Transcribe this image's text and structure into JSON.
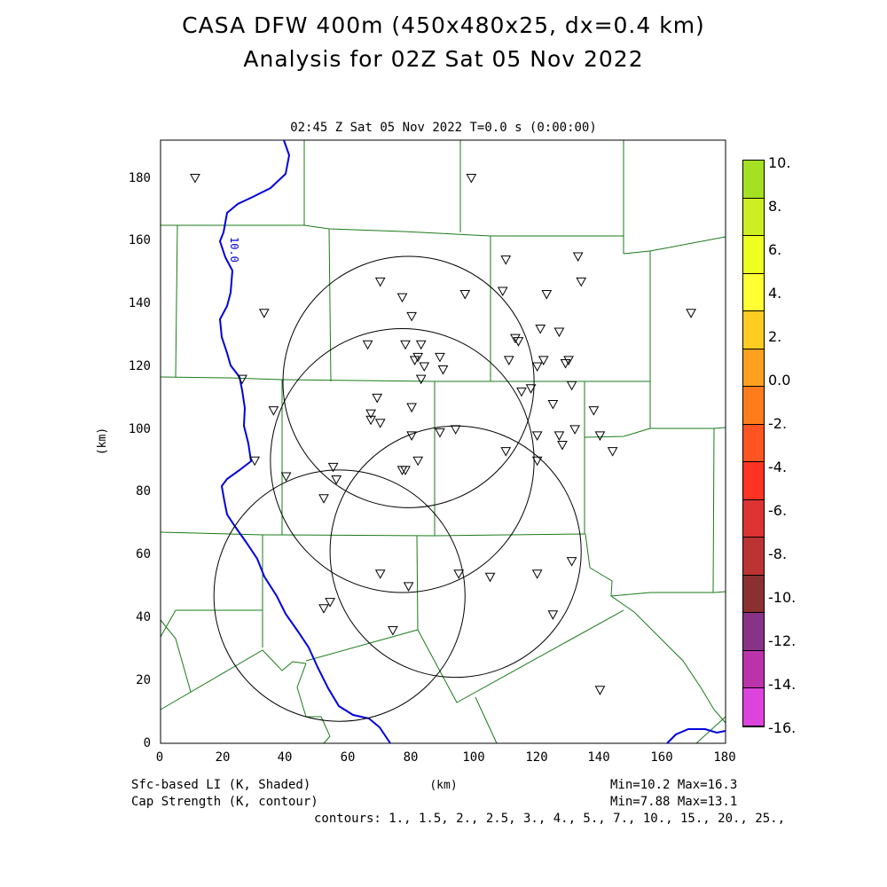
{
  "title_line1": "CASA DFW 400m (450x480x25, dx=0.4 km)",
  "title_line2": "Analysis for 02Z Sat 05 Nov 2022",
  "subtitle": "02:45 Z Sat 05 Nov 2022    T=0.0 s (0:00:00)",
  "y_axis_label": "(km)",
  "x_axis_label": "(km)",
  "y_ticks": [
    "0",
    "20",
    "40",
    "60",
    "80",
    "100",
    "120",
    "140",
    "160",
    "180"
  ],
  "x_ticks": [
    "0",
    "20",
    "40",
    "60",
    "80",
    "100",
    "120",
    "140",
    "160",
    "180"
  ],
  "contour_label": "10.0",
  "footer": {
    "left1": "Sfc-based LI (K, Shaded)",
    "left2": "Cap Strength (K, contour)",
    "right1": "Min=10.2 Max=16.3",
    "right2": "Min=7.88 Max=13.1",
    "contours": "contours: 1., 1.5, 2., 2.5, 3., 4., 5., 7., 10., 15., 20., 25.,"
  },
  "colorbar": {
    "labels": [
      "10.",
      "8.",
      "6.",
      "4.",
      "2.",
      "0.0",
      "-2.",
      "-4.",
      "-6.",
      "-8.",
      "-10.",
      "-12.",
      "-14.",
      "-16."
    ],
    "colors": [
      "#a6e022",
      "#ccee22",
      "#eeff22",
      "#ffff33",
      "#ffcc22",
      "#ffa020",
      "#ff7c1c",
      "#ff5522",
      "#ff3322",
      "#dd3333",
      "#bb3333",
      "#8a3030",
      "#883388",
      "#bb33aa",
      "#dd44dd"
    ]
  },
  "map": {
    "xlim": [
      0,
      180
    ],
    "ylim": [
      0,
      192
    ],
    "radar_circles_km": [
      {
        "cx": 79,
        "cy": 115,
        "r": 40
      },
      {
        "cx": 77,
        "cy": 90,
        "r": 42
      },
      {
        "cx": 57,
        "cy": 47,
        "r": 40
      },
      {
        "cx": 94,
        "cy": 61,
        "r": 40
      }
    ],
    "stations_km": [
      [
        11,
        180
      ],
      [
        99,
        180
      ],
      [
        33,
        137
      ],
      [
        70,
        147
      ],
      [
        77,
        142
      ],
      [
        80,
        136
      ],
      [
        97,
        143
      ],
      [
        109,
        144
      ],
      [
        110,
        154
      ],
      [
        133,
        155
      ],
      [
        134,
        147
      ],
      [
        123,
        143
      ],
      [
        66,
        127
      ],
      [
        78,
        127
      ],
      [
        83,
        127
      ],
      [
        82,
        123
      ],
      [
        81,
        122
      ],
      [
        84,
        120
      ],
      [
        89,
        123
      ],
      [
        90,
        119
      ],
      [
        83,
        116
      ],
      [
        113,
        129
      ],
      [
        114,
        128
      ],
      [
        121,
        132
      ],
      [
        127,
        131
      ],
      [
        122,
        122
      ],
      [
        120,
        120
      ],
      [
        129,
        121
      ],
      [
        130,
        122
      ],
      [
        111,
        122
      ],
      [
        115,
        112
      ],
      [
        118,
        113
      ],
      [
        125,
        108
      ],
      [
        131,
        114
      ],
      [
        138,
        106
      ],
      [
        26,
        116
      ],
      [
        36,
        106
      ],
      [
        69,
        110
      ],
      [
        80,
        107
      ],
      [
        67,
        105
      ],
      [
        67,
        103
      ],
      [
        70,
        102
      ],
      [
        80,
        98
      ],
      [
        89,
        99
      ],
      [
        94,
        100
      ],
      [
        110,
        93
      ],
      [
        120,
        98
      ],
      [
        127,
        98
      ],
      [
        132,
        100
      ],
      [
        128,
        95
      ],
      [
        140,
        98
      ],
      [
        144,
        93
      ],
      [
        120,
        90
      ],
      [
        30,
        90
      ],
      [
        55,
        88
      ],
      [
        56,
        84
      ],
      [
        82,
        90
      ],
      [
        77,
        87
      ],
      [
        78,
        87
      ],
      [
        40,
        85
      ],
      [
        52,
        78
      ],
      [
        70,
        54
      ],
      [
        79,
        50
      ],
      [
        95,
        54
      ],
      [
        105,
        53
      ],
      [
        120,
        54
      ],
      [
        131,
        58
      ],
      [
        52,
        43
      ],
      [
        54,
        45
      ],
      [
        74,
        36
      ],
      [
        125,
        41
      ],
      [
        140,
        17
      ],
      [
        169,
        137
      ]
    ]
  }
}
